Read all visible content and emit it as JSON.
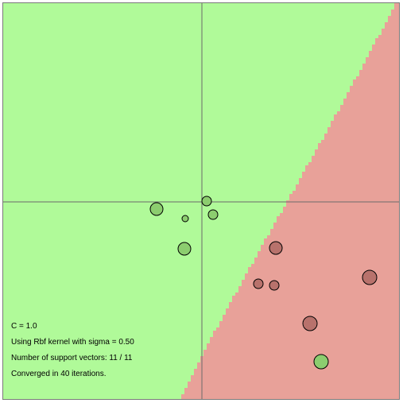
{
  "colors": {
    "positive_region": "#b0fa99",
    "negative_region": "#e8a199",
    "positive_point": "#8ccd6f",
    "negative_point": "#b8726c",
    "axis": "#6b6b6b",
    "point_outline": "#000000"
  },
  "info": {
    "c_line": "C = 1.0",
    "kernel_line": "Using Rbf kernel with sigma = 0.50",
    "sv_line": "Number of support vectors: 11 / 11",
    "iterations_line": "Converged in 40 iterations."
  },
  "chart_data": {
    "type": "scatter",
    "xlim": [
      -1,
      1
    ],
    "ylim": [
      -1,
      1
    ],
    "axes_through_origin": true,
    "decision_regions": true,
    "points": [
      {
        "x": -0.228,
        "y": -0.036,
        "label": 1,
        "r": 8
      },
      {
        "x": -0.084,
        "y": -0.084,
        "label": 1,
        "r": 4
      },
      {
        "x": 0.024,
        "y": 0.004,
        "label": 1,
        "r": 6
      },
      {
        "x": 0.056,
        "y": -0.064,
        "label": 1,
        "r": 6
      },
      {
        "x": -0.088,
        "y": -0.236,
        "label": 1,
        "r": 8
      },
      {
        "x": 0.6,
        "y": -0.804,
        "label": 1,
        "r": 9
      },
      {
        "x": 0.372,
        "y": -0.232,
        "label": -1,
        "r": 8
      },
      {
        "x": 0.284,
        "y": -0.412,
        "label": -1,
        "r": 6
      },
      {
        "x": 0.364,
        "y": -0.42,
        "label": -1,
        "r": 6
      },
      {
        "x": 0.844,
        "y": -0.38,
        "label": -1,
        "r": 9
      },
      {
        "x": 0.544,
        "y": -0.612,
        "label": -1,
        "r": 9
      }
    ]
  }
}
